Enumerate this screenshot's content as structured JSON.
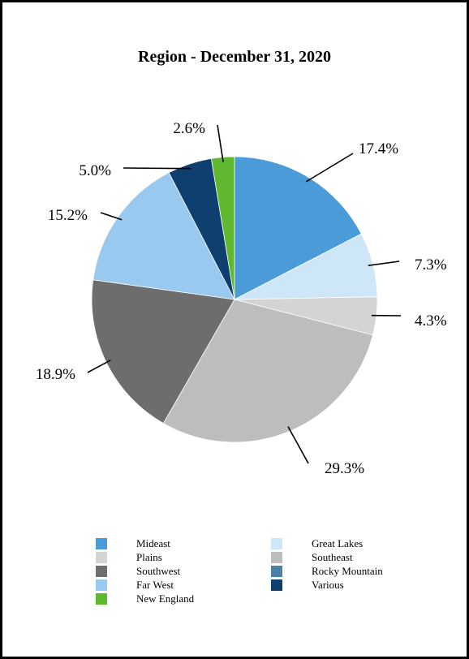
{
  "chart_data": {
    "type": "pie",
    "title": "Region - December 31, 2020",
    "slices": [
      {
        "name": "Mideast",
        "value": 17.4,
        "label": "17.4%",
        "color": "#4a9bd8"
      },
      {
        "name": "Great Lakes",
        "value": 7.3,
        "label": "7.3%",
        "color": "#cde6f8"
      },
      {
        "name": "Plains",
        "value": 4.3,
        "label": "4.3%",
        "color": "#d4d4d4"
      },
      {
        "name": "Southeast",
        "value": 29.3,
        "label": "29.3%",
        "color": "#bdbdbd"
      },
      {
        "name": "Southwest",
        "value": 18.9,
        "label": "18.9%",
        "color": "#6d6d6d"
      },
      {
        "name": "Far West",
        "value": 15.2,
        "label": "15.2%",
        "color": "#99c9ee"
      },
      {
        "name": "Various",
        "value": 5.0,
        "label": "5.0%",
        "color": "#0e3f6e"
      },
      {
        "name": "New England",
        "value": 2.6,
        "label": "2.6%",
        "color": "#5fb82f"
      }
    ],
    "legend": [
      {
        "label": "Mideast",
        "color": "#4a9bd8"
      },
      {
        "label": "Great Lakes",
        "color": "#cde6f8"
      },
      {
        "label": "Plains",
        "color": "#d4d4d4"
      },
      {
        "label": "Southeast",
        "color": "#bdbdbd"
      },
      {
        "label": "Southwest",
        "color": "#6d6d6d"
      },
      {
        "label": "Rocky Mountain",
        "color": "#4a7fa8"
      },
      {
        "label": "Far West",
        "color": "#99c9ee"
      },
      {
        "label": "Various",
        "color": "#0e3f6e"
      },
      {
        "label": "New England",
        "color": "#5fb82f"
      }
    ],
    "legend_placement": "bottom"
  }
}
